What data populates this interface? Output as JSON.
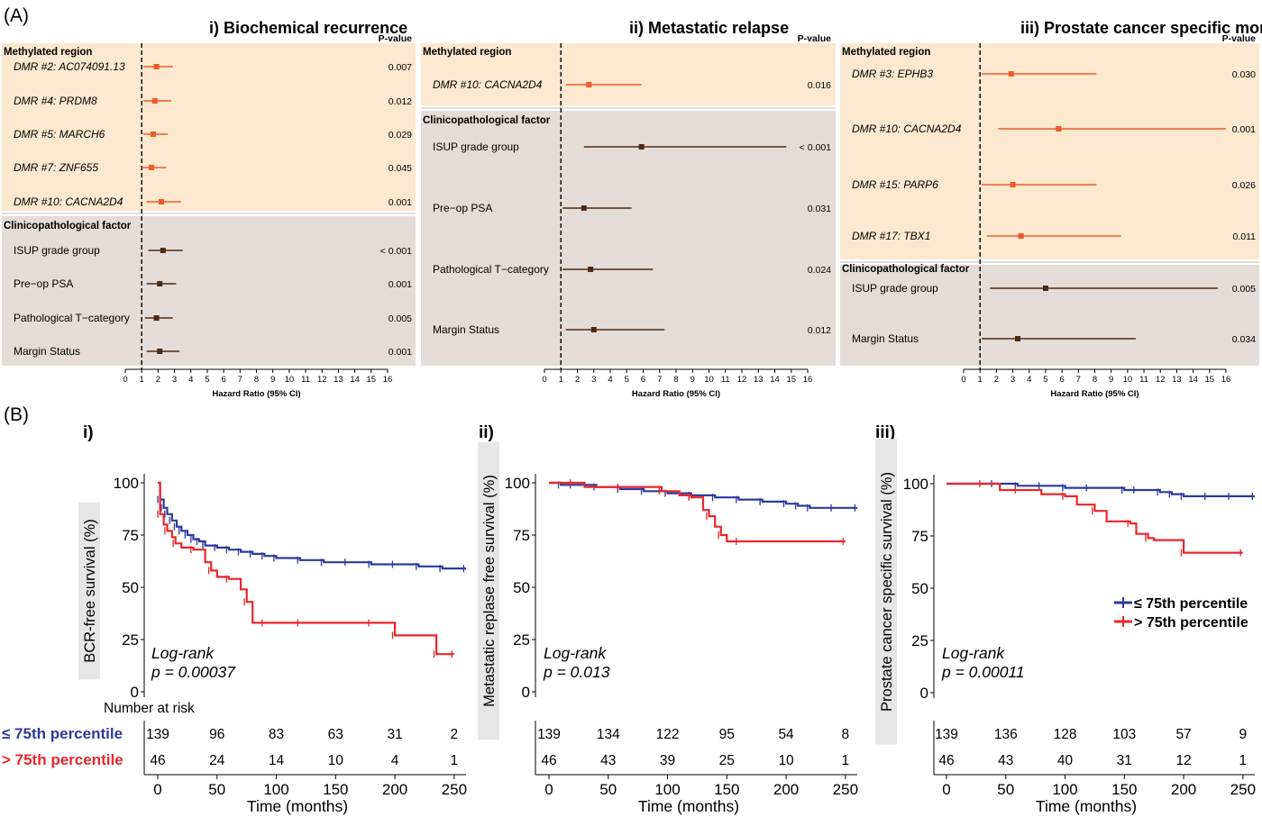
{
  "labels": {
    "panel_a": "(A)",
    "panel_b": "(B)"
  },
  "forest": {
    "xlabel": "Hazard Ratio (95% CI)",
    "pvalue_header": "P-value",
    "section_methylated": "Methylated region",
    "section_clinical": "Clinicopathological factor",
    "ticks": [
      "0",
      "1",
      "2",
      "3",
      "4",
      "5",
      "6",
      "7",
      "8",
      "9",
      "10",
      "11",
      "12",
      "13",
      "14",
      "15",
      "16"
    ],
    "colors": {
      "methylated_bg": "#fbe8cf",
      "clinical_bg": "#e4dcd8",
      "methylated_mark": "#ee5a2b",
      "clinical_mark": "#4e2a12"
    }
  },
  "km": {
    "xlabel": "Time (months)",
    "x_ticks": [
      "0",
      "50",
      "100",
      "150",
      "200",
      "250"
    ],
    "y_ticks": [
      "0",
      "25",
      "50",
      "75",
      "100"
    ],
    "legend_low": "≤ 75th percentile",
    "legend_high": "> 75th percentile",
    "risk_title": "Number at risk",
    "risk_label_low": "≤ 75th percentile",
    "risk_label_high": "> 75th percentile",
    "colors": {
      "low": "#2b3a9c",
      "high": "#e8262a"
    }
  },
  "chart_data": [
    {
      "type": "forest",
      "title": "i) Biochemical recurrence",
      "xlabel": "Hazard Ratio (95% CI)",
      "xlim": [
        0,
        16
      ],
      "reference_line": 1,
      "groups": [
        {
          "name": "Methylated region",
          "rows": [
            {
              "label": "DMR #2: AC074091.13",
              "hr": 1.9,
              "lo": 1.1,
              "hi": 2.9,
              "p": "0.007"
            },
            {
              "label": "DMR #4: PRDM8",
              "hr": 1.8,
              "lo": 1.1,
              "hi": 2.8,
              "p": "0.012"
            },
            {
              "label": "DMR #5: MARCH6",
              "hr": 1.7,
              "lo": 1.1,
              "hi": 2.6,
              "p": "0.029"
            },
            {
              "label": "DMR #7: ZNF655",
              "hr": 1.6,
              "lo": 1.0,
              "hi": 2.5,
              "p": "0.045"
            },
            {
              "label": "DMR #10: CACNA2D4",
              "hr": 2.2,
              "lo": 1.3,
              "hi": 3.4,
              "p": "0.001"
            }
          ]
        },
        {
          "name": "Clinicopathological factor",
          "rows": [
            {
              "label": "ISUP grade group",
              "hr": 2.3,
              "lo": 1.4,
              "hi": 3.5,
              "p": "< 0.001"
            },
            {
              "label": "Pre−op PSA",
              "hr": 2.1,
              "lo": 1.3,
              "hi": 3.1,
              "p": "0.001"
            },
            {
              "label": "Pathological T−category",
              "hr": 1.9,
              "lo": 1.2,
              "hi": 2.9,
              "p": "0.005"
            },
            {
              "label": "Margin Status",
              "hr": 2.1,
              "lo": 1.3,
              "hi": 3.3,
              "p": "0.001"
            }
          ]
        }
      ]
    },
    {
      "type": "forest",
      "title": "ii) Metastatic relapse",
      "xlabel": "Hazard Ratio (95% CI)",
      "xlim": [
        0,
        16
      ],
      "reference_line": 1,
      "groups": [
        {
          "name": "Methylated region",
          "rows": [
            {
              "label": "DMR #10: CACNA2D4",
              "hr": 2.7,
              "lo": 1.3,
              "hi": 5.9,
              "p": "0.016"
            }
          ]
        },
        {
          "name": "Clinicopathological factor",
          "rows": [
            {
              "label": "ISUP grade group",
              "hr": 5.9,
              "lo": 2.4,
              "hi": 14.7,
              "p": "< 0.001"
            },
            {
              "label": "Pre−op PSA",
              "hr": 2.4,
              "lo": 1.1,
              "hi": 5.3,
              "p": "0.031"
            },
            {
              "label": "Pathological T−category",
              "hr": 2.8,
              "lo": 1.1,
              "hi": 6.6,
              "p": "0.024"
            },
            {
              "label": "Margin Status",
              "hr": 3.0,
              "lo": 1.3,
              "hi": 7.3,
              "p": "0.012"
            }
          ]
        }
      ]
    },
    {
      "type": "forest",
      "title": "iii) Prostate cancer specific mortality",
      "xlabel": "Hazard Ratio (95% CI)",
      "xlim": [
        0,
        16
      ],
      "reference_line": 1,
      "groups": [
        {
          "name": "Methylated region",
          "rows": [
            {
              "label": "DMR #3: EPHB3",
              "hr": 2.9,
              "lo": 1.1,
              "hi": 8.1,
              "p": "0.030"
            },
            {
              "label": "DMR #10: CACNA2D4",
              "hr": 5.8,
              "lo": 2.1,
              "hi": 16.0,
              "p": "0.001"
            },
            {
              "label": "DMR #15: PARP6",
              "hr": 3.0,
              "lo": 1.1,
              "hi": 8.1,
              "p": "0.026"
            },
            {
              "label": "DMR #17: TBX1",
              "hr": 3.5,
              "lo": 1.4,
              "hi": 9.6,
              "p": "0.011"
            }
          ]
        },
        {
          "name": "Clinicopathological factor",
          "rows": [
            {
              "label": "ISUP grade group",
              "hr": 5.0,
              "lo": 1.6,
              "hi": 15.5,
              "p": "0.005"
            },
            {
              "label": "Margin Status",
              "hr": 3.3,
              "lo": 1.1,
              "hi": 10.5,
              "p": "0.034"
            }
          ]
        }
      ]
    },
    {
      "type": "line",
      "title": "i)",
      "ylabel": "BCR-free survival (%)",
      "xlabel": "Time (months)",
      "xlim": [
        0,
        260
      ],
      "ylim": [
        0,
        100
      ],
      "annotation": [
        "Log-rank",
        "p = 0.00037"
      ],
      "series": [
        {
          "name": "≤ 75th percentile",
          "x": [
            0,
            2,
            5,
            8,
            12,
            16,
            20,
            25,
            30,
            35,
            40,
            50,
            60,
            70,
            80,
            90,
            100,
            120,
            140,
            160,
            180,
            200,
            220,
            240,
            260
          ],
          "y": [
            100,
            92,
            88,
            85,
            82,
            79,
            77,
            75,
            73,
            72,
            70,
            69,
            68,
            67,
            66,
            65,
            64,
            63,
            62,
            62,
            61,
            61,
            60,
            59,
            59
          ]
        },
        {
          "name": "> 75th percentile",
          "x": [
            0,
            2,
            5,
            8,
            12,
            15,
            20,
            30,
            40,
            45,
            50,
            60,
            70,
            75,
            80,
            90,
            100,
            120,
            150,
            180,
            198,
            200,
            230,
            235,
            240,
            250
          ],
          "y": [
            100,
            85,
            80,
            77,
            74,
            71,
            69,
            68,
            62,
            58,
            55,
            54,
            49,
            43,
            33,
            33,
            33,
            33,
            33,
            33,
            33,
            27,
            27,
            18,
            18,
            18
          ]
        }
      ],
      "risk_table": {
        "times": [
          0,
          50,
          100,
          150,
          200,
          250
        ],
        "low": [
          "139",
          "96",
          "83",
          "63",
          "31",
          "2"
        ],
        "high": [
          "46",
          "24",
          "14",
          "10",
          "4",
          "1"
        ]
      }
    },
    {
      "type": "line",
      "title": "ii)",
      "ylabel": "Metastatic replase free survival (%)",
      "xlabel": "Time (months)",
      "xlim": [
        0,
        260
      ],
      "ylim": [
        0,
        100
      ],
      "annotation": [
        "Log-rank",
        "p = 0.013"
      ],
      "series": [
        {
          "name": "≤ 75th percentile",
          "x": [
            0,
            10,
            20,
            40,
            60,
            80,
            100,
            120,
            140,
            160,
            180,
            200,
            210,
            220,
            240,
            260
          ],
          "y": [
            100,
            99,
            99,
            98,
            97,
            96,
            95,
            94,
            93,
            92,
            91,
            90,
            89,
            88,
            88,
            88
          ]
        },
        {
          "name": "> 75th percentile",
          "x": [
            0,
            20,
            30,
            60,
            90,
            95,
            110,
            120,
            130,
            135,
            140,
            145,
            150,
            160,
            200,
            250
          ],
          "y": [
            100,
            100,
            98,
            98,
            98,
            96,
            94,
            93,
            87,
            84,
            79,
            75,
            72,
            72,
            72,
            72
          ]
        }
      ],
      "risk_table": {
        "times": [
          0,
          50,
          100,
          150,
          200,
          250
        ],
        "low": [
          "139",
          "134",
          "122",
          "95",
          "54",
          "8"
        ],
        "high": [
          "46",
          "43",
          "39",
          "25",
          "10",
          "1"
        ]
      }
    },
    {
      "type": "line",
      "title": "iii)",
      "ylabel": "Prostate cancer specific survival (%)",
      "xlabel": "Time (months)",
      "xlim": [
        0,
        260
      ],
      "ylim": [
        0,
        100
      ],
      "annotation": [
        "Log-rank",
        "p = 0.00011"
      ],
      "series": [
        {
          "name": "≤ 75th percentile",
          "x": [
            0,
            40,
            60,
            80,
            100,
            120,
            150,
            160,
            180,
            190,
            200,
            220,
            240,
            260
          ],
          "y": [
            100,
            100,
            99,
            99,
            98,
            98,
            97,
            97,
            96,
            95,
            94,
            94,
            94,
            94
          ]
        },
        {
          "name": "> 75th percentile",
          "x": [
            0,
            30,
            45,
            60,
            80,
            100,
            110,
            125,
            135,
            155,
            160,
            170,
            175,
            200,
            210,
            250
          ],
          "y": [
            100,
            100,
            97,
            97,
            95,
            94,
            90,
            87,
            82,
            81,
            76,
            74,
            73,
            67,
            67,
            67
          ]
        }
      ],
      "risk_table": {
        "times": [
          0,
          50,
          100,
          150,
          200,
          250
        ],
        "low": [
          "139",
          "136",
          "128",
          "103",
          "57",
          "9"
        ],
        "high": [
          "46",
          "43",
          "40",
          "31",
          "12",
          "1"
        ]
      }
    }
  ]
}
